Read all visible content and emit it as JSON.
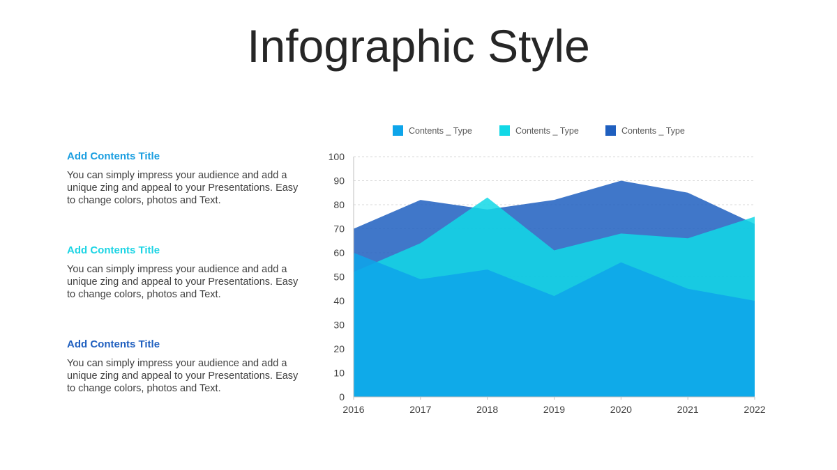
{
  "slide": {
    "title": "Infographic Style"
  },
  "blocks": [
    {
      "heading": "Add Contents Title",
      "heading_color": "#1a9ee0",
      "body": "You can simply impress your audience and add a unique zing and appeal to your Presentations. Easy to change colors, photos and Text."
    },
    {
      "heading": "Add Contents Title",
      "heading_color": "#1cd4e4",
      "body": "You can simply impress your audience and add a unique zing and appeal to your Presentations. Easy to change colors, photos and Text."
    },
    {
      "heading": "Add Contents Title",
      "heading_color": "#1f5fbf",
      "body": "You can simply impress your audience and add a unique zing and appeal to your Presentations. Easy to change colors, photos and Text."
    }
  ],
  "chart_data": {
    "type": "area",
    "x": [
      "2016",
      "2017",
      "2018",
      "2019",
      "2020",
      "2021",
      "2022"
    ],
    "ylim": [
      0,
      100
    ],
    "yticks": [
      0,
      10,
      20,
      30,
      40,
      50,
      60,
      70,
      80,
      90,
      100
    ],
    "grid": true,
    "legend_position": "top",
    "series": [
      {
        "name": "Contents _ Type",
        "color": "#1f5fbf",
        "values": [
          70,
          82,
          78,
          82,
          90,
          85,
          72
        ]
      },
      {
        "name": "Contents _ Type",
        "color": "#12d8e6",
        "values": [
          52,
          64,
          83,
          61,
          68,
          66,
          75
        ]
      },
      {
        "name": "Contents _ Type",
        "color": "#0ea5ea",
        "values": [
          60,
          49,
          53,
          42,
          56,
          45,
          40
        ]
      }
    ],
    "legend_order": [
      2,
      1,
      0
    ]
  }
}
